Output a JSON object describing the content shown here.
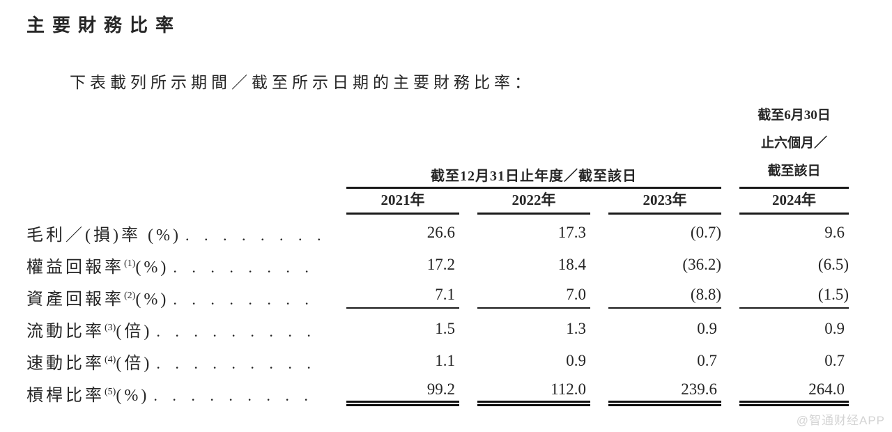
{
  "page": {
    "title": "主要財務比率",
    "intro": "下表載列所示期間／截至所示日期的主要財務比率：",
    "watermark": "@智通财经APP"
  },
  "table": {
    "annual_period_header": "截至12月31日止年度／截至該日",
    "interim_period_header": {
      "line1": "截至6月30日",
      "line2": "止六個月／",
      "line3": "截至該日"
    },
    "years": [
      "2021年",
      "2022年",
      "2023年",
      "2024年"
    ],
    "rows": [
      {
        "pre": "毛利／(損)率 (%)",
        "sup": "",
        "post": "",
        "values": [
          "26.6",
          "17.3",
          "(0.7)",
          "9.6"
        ]
      },
      {
        "pre": "權益回報率",
        "sup": "(1)",
        "post": " (%)",
        "values": [
          "17.2",
          "18.4",
          "(36.2)",
          "(6.5)"
        ]
      },
      {
        "pre": "資產回報率",
        "sup": "(2)",
        "post": " (%)",
        "values": [
          "7.1",
          "7.0",
          "(8.8)",
          "(1.5)"
        ]
      },
      {
        "pre": "流動比率",
        "sup": "(3)",
        "post": "(倍)",
        "values": [
          "1.5",
          "1.3",
          "0.9",
          "0.9"
        ]
      },
      {
        "pre": "速動比率",
        "sup": "(4)",
        "post": "(倍)",
        "values": [
          "1.1",
          "0.9",
          "0.7",
          "0.7"
        ]
      },
      {
        "pre": "槓桿比率",
        "sup": "(5)",
        "post": " (%)",
        "values": [
          "99.2",
          "112.0",
          "239.6",
          "264.0"
        ]
      }
    ]
  },
  "colors": {
    "text": "#262626",
    "rule": "#1a1a1a",
    "watermark": "#d4d4d4"
  }
}
